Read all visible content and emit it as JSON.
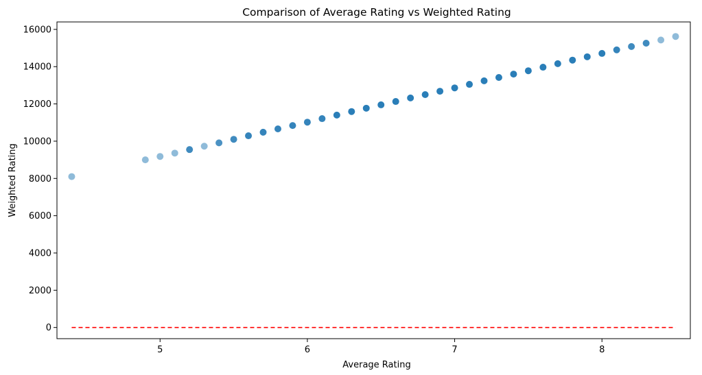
{
  "chart_data": {
    "type": "scatter",
    "title": "Comparison of Average Rating vs Weighted Rating",
    "xlabel": "Average Rating",
    "ylabel": "Weighted Rating",
    "xlim": [
      4.3,
      8.6
    ],
    "ylim": [
      -600,
      16400
    ],
    "xticks": [
      5,
      6,
      7,
      8
    ],
    "yticks": [
      0,
      2000,
      4000,
      6000,
      8000,
      10000,
      12000,
      14000,
      16000
    ],
    "grid": false,
    "point_color": "#1f77b4",
    "line_color": "#ff0000",
    "series": [
      {
        "type": "scatter",
        "x": [
          4.4,
          4.9,
          5.0,
          5.1,
          5.2,
          5.3,
          5.4,
          5.5,
          5.6,
          5.7,
          5.8,
          5.9,
          6.0,
          6.1,
          6.2,
          6.3,
          6.4,
          6.5,
          6.6,
          6.7,
          6.8,
          6.9,
          7.0,
          7.1,
          7.2,
          7.3,
          7.4,
          7.5,
          7.6,
          7.7,
          7.8,
          7.9,
          8.0,
          8.1,
          8.2,
          8.3,
          8.4,
          8.5
        ],
        "y": [
          8100,
          9000,
          9180,
          9360,
          9550,
          9730,
          9910,
          10100,
          10290,
          10480,
          10660,
          10840,
          11020,
          11210,
          11400,
          11590,
          11770,
          11950,
          12130,
          12320,
          12500,
          12680,
          12860,
          13050,
          13240,
          13420,
          13600,
          13780,
          13970,
          14160,
          14350,
          14530,
          14710,
          14900,
          15080,
          15260,
          15430,
          15620
        ],
        "opacity": [
          0.5,
          0.5,
          0.5,
          0.5,
          0.85,
          0.5,
          0.8,
          0.85,
          0.9,
          0.9,
          0.9,
          0.9,
          0.9,
          0.9,
          0.95,
          0.95,
          0.95,
          0.95,
          0.95,
          0.95,
          0.95,
          0.95,
          0.95,
          0.95,
          0.95,
          0.95,
          0.95,
          0.95,
          0.95,
          0.95,
          0.95,
          0.95,
          0.95,
          0.9,
          0.85,
          0.85,
          0.5,
          0.5
        ]
      },
      {
        "type": "line",
        "style": "dashed",
        "x": [
          4.4,
          8.5
        ],
        "y": [
          0,
          0
        ]
      }
    ]
  }
}
